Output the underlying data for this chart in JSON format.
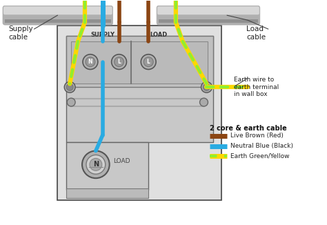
{
  "bg_color": "#ffffff",
  "gray_light": "#d0d0d0",
  "gray_mid": "#b8b8b8",
  "gray_dark": "#888888",
  "brown_color": "#8B4513",
  "blue_color": "#29ABE2",
  "gy_green": "#90EE30",
  "gy_yellow": "#FFD700",
  "box_border": "#555555",
  "title_legend": "2 core & earth cable",
  "legend_items": [
    {
      "label": "Live Brown (Red)",
      "color": "#8B4513",
      "style": "solid"
    },
    {
      "label": "Neutral Blue (Black)",
      "color": "#29ABE2",
      "style": "solid"
    },
    {
      "label": "Earth Green/Yellow",
      "color": "#90EE30",
      "style": "earth"
    }
  ],
  "supply_label": "Supply\ncable",
  "load_label": "Load\ncable",
  "earth_label": "Earth wire to\nearth terminal\nin wall box",
  "supply_terminal_label": "SUPPLY",
  "load_terminal_label": "LOAD",
  "load_switch_label": "LOAD",
  "switch_label": "N",
  "figsize": [
    4.74,
    3.26
  ],
  "dpi": 100
}
